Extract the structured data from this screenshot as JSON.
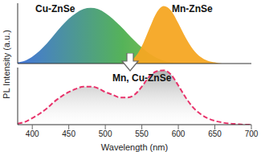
{
  "chart_data": [
    {
      "type": "area",
      "y_label": "PL Intensity (a.u.)",
      "xlim": [
        380,
        700
      ],
      "xticks": [
        400,
        450,
        500,
        550,
        600,
        650,
        700
      ],
      "ylim": [
        0,
        1.05
      ],
      "tick_labels": false,
      "x": [
        380,
        390,
        400,
        410,
        420,
        430,
        440,
        450,
        460,
        470,
        480,
        490,
        500,
        510,
        520,
        530,
        540,
        550,
        560,
        570,
        580,
        590,
        600,
        610,
        620,
        630,
        640,
        650,
        660,
        670,
        680,
        690,
        700
      ],
      "series": [
        {
          "name": "Cu-ZnSe",
          "color": "#4caf50",
          "values": [
            0.02,
            0.05,
            0.12,
            0.22,
            0.35,
            0.5,
            0.65,
            0.78,
            0.88,
            0.95,
            0.97,
            0.95,
            0.88,
            0.78,
            0.66,
            0.53,
            0.4,
            0.28,
            0.18,
            0.1,
            0.05,
            0.02,
            0.01,
            0,
            0,
            0,
            0,
            0,
            0,
            0,
            0,
            0,
            0
          ]
        },
        {
          "name": "Mn-ZnSe",
          "color": "#f5a623",
          "values": [
            0,
            0,
            0,
            0,
            0,
            0,
            0,
            0,
            0,
            0,
            0,
            0,
            0,
            0,
            0,
            0.02,
            0.1,
            0.3,
            0.6,
            0.88,
            1.0,
            0.92,
            0.7,
            0.45,
            0.25,
            0.12,
            0.05,
            0.02,
            0,
            0,
            0,
            0,
            0
          ]
        }
      ]
    },
    {
      "type": "area",
      "x_label": "Wavelength (nm)",
      "xlim": [
        380,
        700
      ],
      "xticks": [
        400,
        450,
        500,
        550,
        600,
        650,
        700
      ],
      "ylim": [
        0,
        1.05
      ],
      "tick_labels": "x",
      "x": [
        380,
        390,
        400,
        410,
        420,
        430,
        440,
        450,
        460,
        470,
        480,
        490,
        500,
        510,
        520,
        530,
        540,
        550,
        560,
        570,
        580,
        590,
        600,
        610,
        620,
        630,
        640,
        650,
        660,
        670,
        680,
        690,
        700
      ],
      "series": [
        {
          "name": "Mn, Cu-ZnSe",
          "color": "#e8336b",
          "line_style": "dashed",
          "values": [
            0.02,
            0.05,
            0.12,
            0.2,
            0.3,
            0.42,
            0.52,
            0.6,
            0.66,
            0.7,
            0.7,
            0.67,
            0.6,
            0.55,
            0.5,
            0.5,
            0.55,
            0.7,
            0.88,
            0.98,
            1.0,
            0.92,
            0.72,
            0.5,
            0.32,
            0.2,
            0.12,
            0.07,
            0.04,
            0.02,
            0.01,
            0,
            0
          ]
        }
      ]
    }
  ]
}
